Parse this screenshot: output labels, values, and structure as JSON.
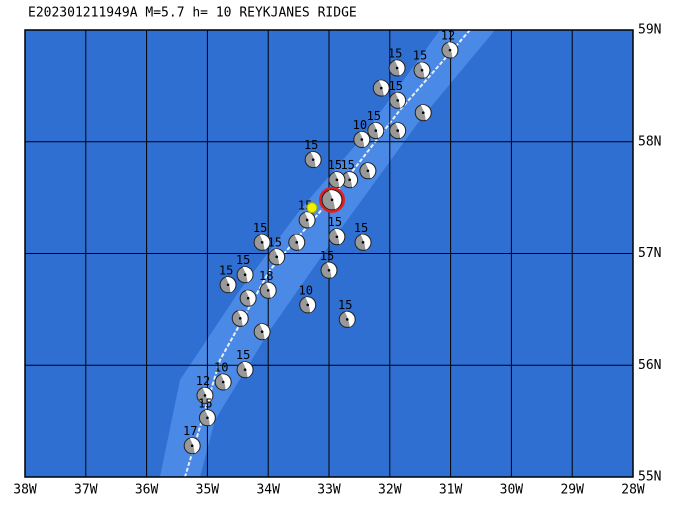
{
  "title": "E202301211949A M=5.7 h= 10 REYKJANES RIDGE",
  "map": {
    "lonlim": [
      -38,
      -28
    ],
    "latlim": [
      55,
      59
    ],
    "lon_ticks": [
      {
        "value": -38,
        "label": "38W"
      },
      {
        "value": -37,
        "label": "37W"
      },
      {
        "value": -36,
        "label": "36W"
      },
      {
        "value": -35,
        "label": "35W"
      },
      {
        "value": -34,
        "label": "34W"
      },
      {
        "value": -33,
        "label": "33W"
      },
      {
        "value": -32,
        "label": "32W"
      },
      {
        "value": -31,
        "label": "31W"
      },
      {
        "value": -30,
        "label": "30W"
      },
      {
        "value": -29,
        "label": "29W"
      },
      {
        "value": -28,
        "label": "28W"
      }
    ],
    "lat_ticks": [
      {
        "value": 59,
        "label": "59N"
      },
      {
        "value": 58,
        "label": "58N"
      },
      {
        "value": 57,
        "label": "57N"
      },
      {
        "value": 56,
        "label": "56N"
      },
      {
        "value": 55,
        "label": "55N"
      }
    ],
    "main_event": {
      "lon": -32.95,
      "lat": 57.48,
      "color": "#e02020"
    },
    "epicenter": {
      "lon": -33.28,
      "lat": 57.41,
      "color": "#f0f000"
    },
    "events": [
      {
        "lon": -31.01,
        "lat": 58.82,
        "depth": 12
      },
      {
        "lon": -31.47,
        "lat": 58.64,
        "depth": 15
      },
      {
        "lon": -31.88,
        "lat": 58.66,
        "depth": 15
      },
      {
        "lon": -31.45,
        "lat": 58.26,
        "depth": null
      },
      {
        "lon": -31.87,
        "lat": 58.37,
        "depth": 15
      },
      {
        "lon": -32.14,
        "lat": 58.48,
        "depth": null
      },
      {
        "lon": -32.46,
        "lat": 58.02,
        "depth": 10
      },
      {
        "lon": -32.23,
        "lat": 58.1,
        "depth": 15
      },
      {
        "lon": -31.87,
        "lat": 58.1,
        "depth": null
      },
      {
        "lon": -33.26,
        "lat": 57.84,
        "depth": 15
      },
      {
        "lon": -32.36,
        "lat": 57.74,
        "depth": null
      },
      {
        "lon": -32.66,
        "lat": 57.66,
        "depth": 15
      },
      {
        "lon": -32.87,
        "lat": 57.66,
        "depth": 15
      },
      {
        "lon": -33.36,
        "lat": 57.3,
        "depth": 15
      },
      {
        "lon": -32.87,
        "lat": 57.15,
        "depth": 15
      },
      {
        "lon": -32.44,
        "lat": 57.1,
        "depth": 15
      },
      {
        "lon": -33.0,
        "lat": 56.85,
        "depth": 15
      },
      {
        "lon": -33.35,
        "lat": 56.54,
        "depth": 10
      },
      {
        "lon": -32.7,
        "lat": 56.41,
        "depth": 15
      },
      {
        "lon": -33.53,
        "lat": 57.1,
        "depth": null
      },
      {
        "lon": -33.86,
        "lat": 56.97,
        "depth": 15
      },
      {
        "lon": -34.1,
        "lat": 57.1,
        "depth": 15
      },
      {
        "lon": -34.66,
        "lat": 56.72,
        "depth": 15
      },
      {
        "lon": -34.38,
        "lat": 56.81,
        "depth": 15
      },
      {
        "lon": -34.0,
        "lat": 56.67,
        "depth": 18
      },
      {
        "lon": -34.33,
        "lat": 56.6,
        "depth": null
      },
      {
        "lon": -34.46,
        "lat": 56.42,
        "depth": null
      },
      {
        "lon": -34.1,
        "lat": 56.3,
        "depth": null
      },
      {
        "lon": -34.38,
        "lat": 55.96,
        "depth": 15
      },
      {
        "lon": -34.74,
        "lat": 55.85,
        "depth": 10
      },
      {
        "lon": -35.04,
        "lat": 55.73,
        "depth": 12
      },
      {
        "lon": -35.0,
        "lat": 55.53,
        "depth": 15
      },
      {
        "lon": -35.25,
        "lat": 55.28,
        "depth": 17
      }
    ]
  }
}
